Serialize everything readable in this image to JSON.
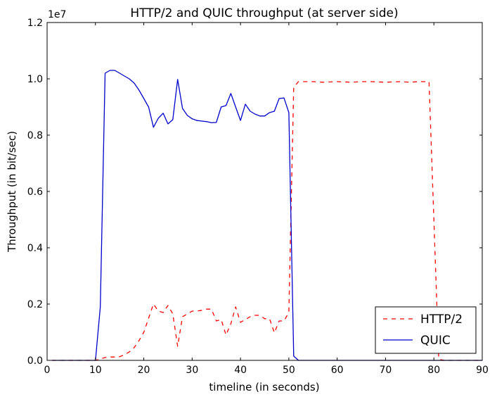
{
  "chart_data": {
    "type": "line",
    "title": "HTTP/2 and QUIC throughput (at server side)",
    "xlabel": "timeline (in seconds)",
    "ylabel": "Throughput (in bit/sec)",
    "y_scale_label": "1e7",
    "xlim": [
      0,
      90
    ],
    "ylim": [
      0,
      1.2
    ],
    "x_ticks": [
      0,
      10,
      20,
      30,
      40,
      50,
      60,
      70,
      80,
      90
    ],
    "x_tick_labels": [
      "0",
      "10",
      "20",
      "30",
      "40",
      "50",
      "60",
      "70",
      "80",
      "90"
    ],
    "y_ticks": [
      0.0,
      0.2,
      0.4,
      0.6,
      0.8,
      1.0,
      1.2
    ],
    "y_tick_labels": [
      "0.0",
      "0.2",
      "0.4",
      "0.6",
      "0.8",
      "1.0",
      "1.2"
    ],
    "grid": false,
    "legend_position": "lower-right",
    "series": [
      {
        "name": "HTTP/2",
        "color": "#ff0000",
        "style": "dashed",
        "x": [
          1,
          10,
          11,
          12,
          13,
          14,
          15,
          16,
          17,
          18,
          19,
          20,
          21,
          22,
          23,
          24,
          25,
          26,
          27,
          28,
          29,
          30,
          31,
          32,
          33,
          34,
          35,
          36,
          37,
          38,
          39,
          40,
          41,
          42,
          43,
          44,
          45,
          46,
          47,
          48,
          49,
          50,
          51,
          52,
          53,
          55,
          57,
          60,
          63,
          65,
          67,
          70,
          73,
          75,
          77,
          79,
          80,
          81,
          82,
          90
        ],
        "y": [
          0.0,
          0.0,
          0.005,
          0.01,
          0.012,
          0.012,
          0.013,
          0.02,
          0.03,
          0.045,
          0.07,
          0.1,
          0.15,
          0.2,
          0.175,
          0.17,
          0.195,
          0.165,
          0.05,
          0.155,
          0.165,
          0.175,
          0.175,
          0.178,
          0.182,
          0.182,
          0.14,
          0.145,
          0.09,
          0.13,
          0.19,
          0.135,
          0.145,
          0.155,
          0.16,
          0.16,
          0.148,
          0.148,
          0.098,
          0.14,
          0.14,
          0.17,
          0.97,
          0.99,
          0.99,
          0.99,
          0.988,
          0.99,
          0.988,
          0.99,
          0.99,
          0.988,
          0.99,
          0.988,
          0.99,
          0.99,
          0.5,
          0.005,
          0.0,
          0.0
        ]
      },
      {
        "name": "QUIC",
        "color": "#0000cc",
        "style": "solid",
        "x": [
          1,
          10,
          11,
          12,
          13,
          14,
          15,
          16,
          17,
          18,
          19,
          20,
          21,
          22,
          23,
          24,
          25,
          26,
          27,
          28,
          29,
          30,
          31,
          32,
          33,
          34,
          35,
          36,
          37,
          38,
          39,
          40,
          41,
          42,
          43,
          44,
          45,
          46,
          47,
          48,
          49,
          50,
          51,
          52,
          53,
          60,
          70,
          80,
          90
        ],
        "y": [
          0.0,
          0.0,
          0.19,
          1.02,
          1.03,
          1.03,
          1.02,
          1.01,
          1.0,
          0.985,
          0.96,
          0.93,
          0.9,
          0.828,
          0.86,
          0.878,
          0.84,
          0.855,
          0.998,
          0.895,
          0.87,
          0.858,
          0.852,
          0.85,
          0.848,
          0.844,
          0.845,
          0.9,
          0.905,
          0.948,
          0.9,
          0.852,
          0.91,
          0.885,
          0.875,
          0.868,
          0.868,
          0.88,
          0.885,
          0.93,
          0.932,
          0.88,
          0.015,
          0.0,
          0.0,
          0.0,
          0.0,
          0.0,
          0.0
        ]
      }
    ]
  }
}
